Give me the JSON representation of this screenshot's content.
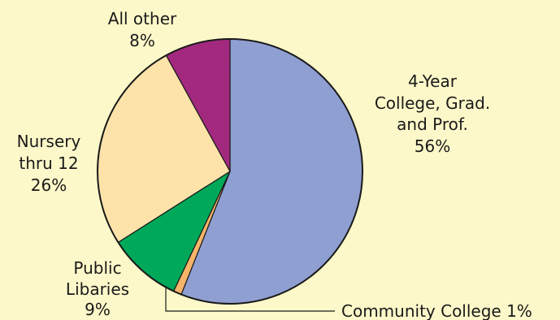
{
  "chart_data": {
    "type": "pie",
    "title": "",
    "slices": [
      {
        "label": "4-Year College, Grad. and Prof.",
        "label_lines": [
          "4-Year",
          "College, Grad.",
          "and Prof.",
          "56%"
        ],
        "value": 56,
        "color": "#8f9fd2"
      },
      {
        "label": "Community College",
        "label_lines": [
          "Community College 1%"
        ],
        "value": 1,
        "color": "#f5b56a"
      },
      {
        "label": "Public Libaries",
        "label_lines": [
          "Public",
          "Libaries",
          "9%"
        ],
        "value": 9,
        "color": "#00a85a"
      },
      {
        "label": "Nursery thru 12",
        "label_lines": [
          "Nursery",
          "thru 12",
          "26%"
        ],
        "value": 26,
        "color": "#fde3aa"
      },
      {
        "label": "All other",
        "label_lines": [
          "All other",
          "8%"
        ],
        "value": 8,
        "color": "#a3297f"
      }
    ]
  }
}
